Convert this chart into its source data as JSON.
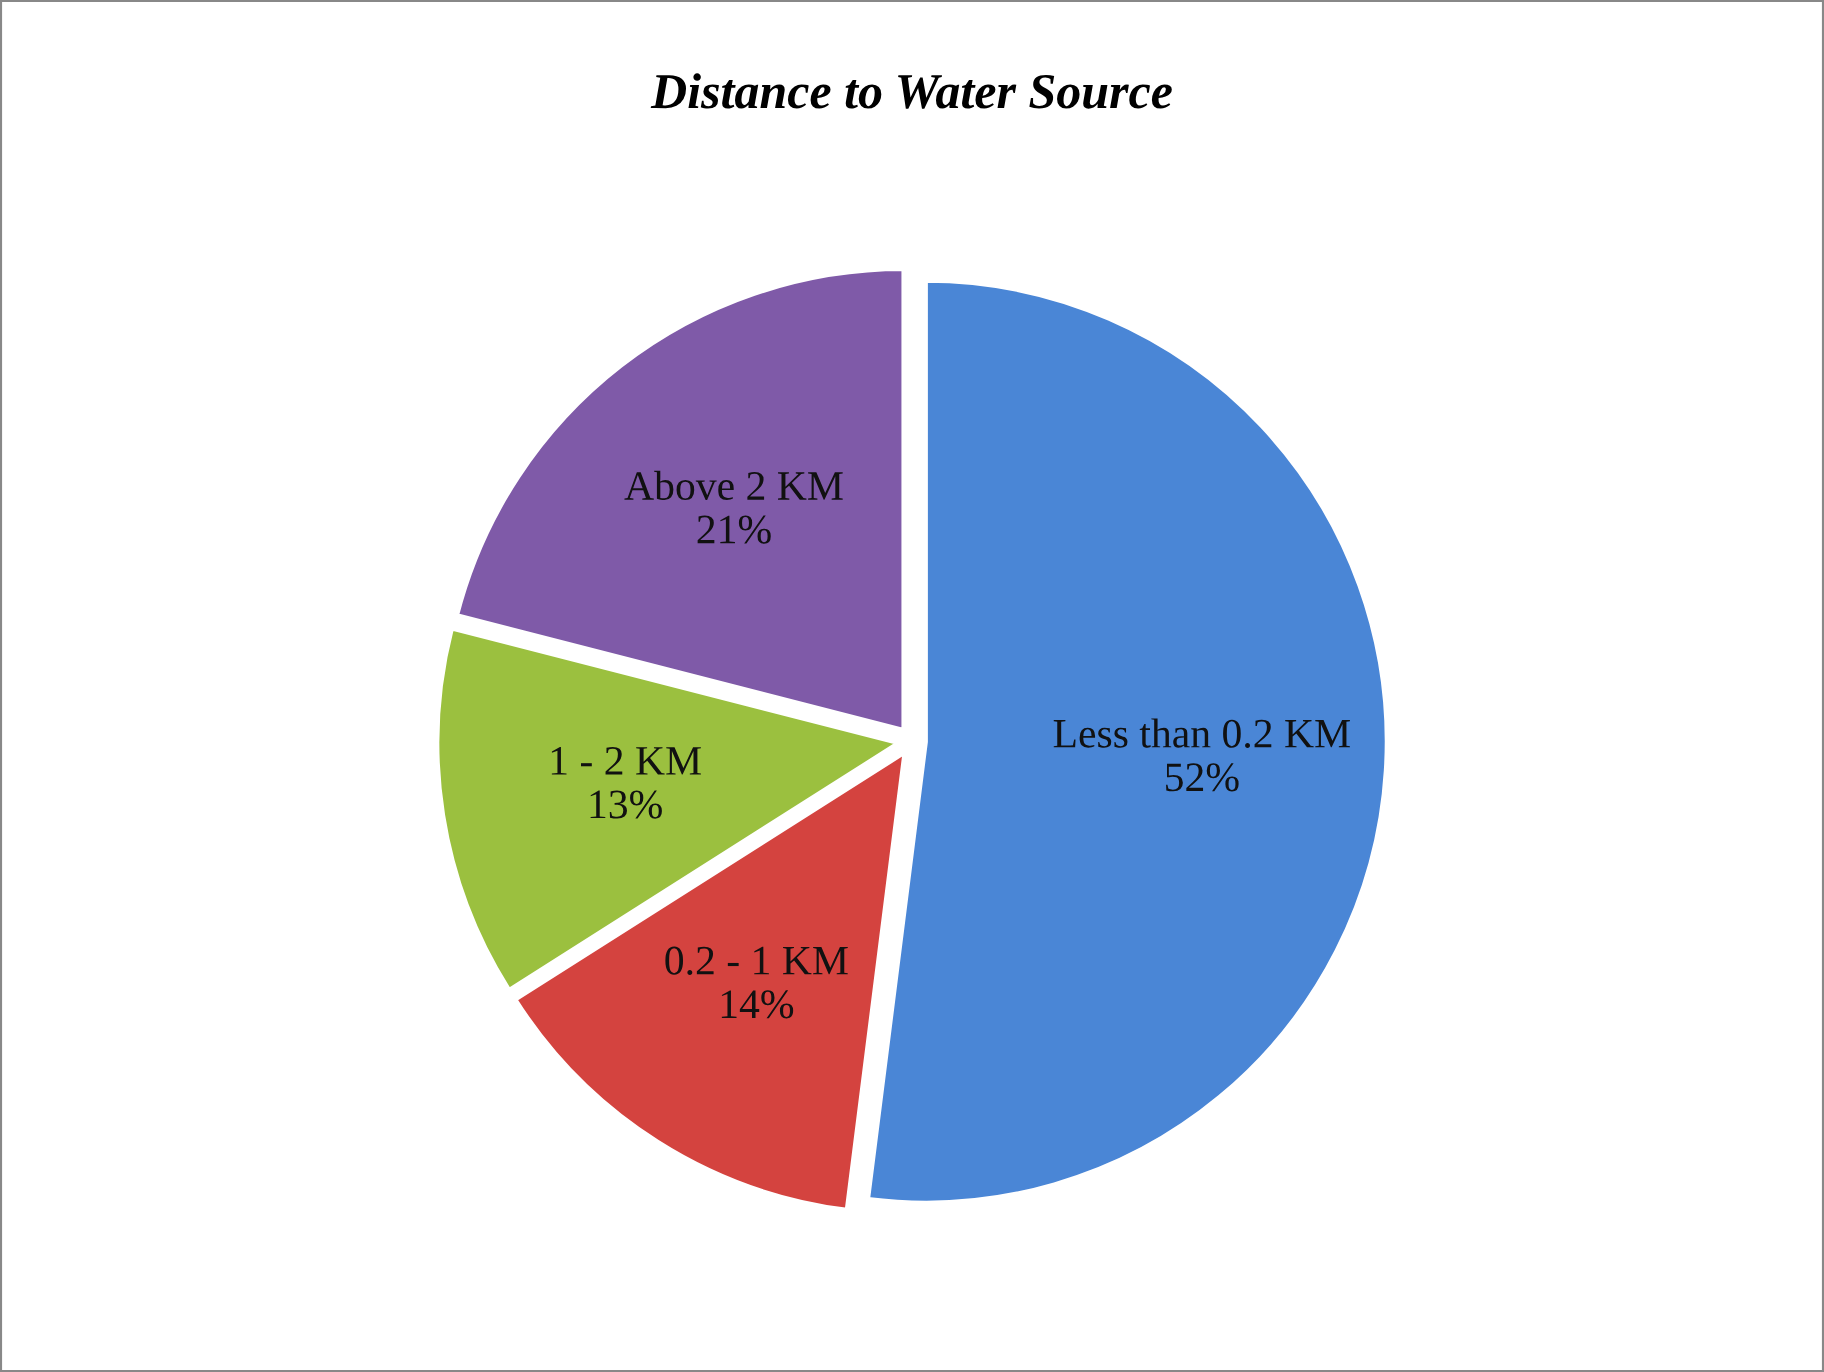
{
  "chart_data": {
    "type": "pie",
    "title": "Distance to Water Source",
    "categories": [
      "Less than 0.2 KM",
      "0.2 - 1 KM",
      "1 - 2 KM",
      "Above 2 KM"
    ],
    "values": [
      52,
      14,
      13,
      21
    ],
    "value_labels": [
      "52%",
      "14%",
      "13%",
      "21%"
    ],
    "colors": [
      "#4a86d6",
      "#d4433f",
      "#9bc03f",
      "#7f5aa8"
    ],
    "legend": false
  }
}
